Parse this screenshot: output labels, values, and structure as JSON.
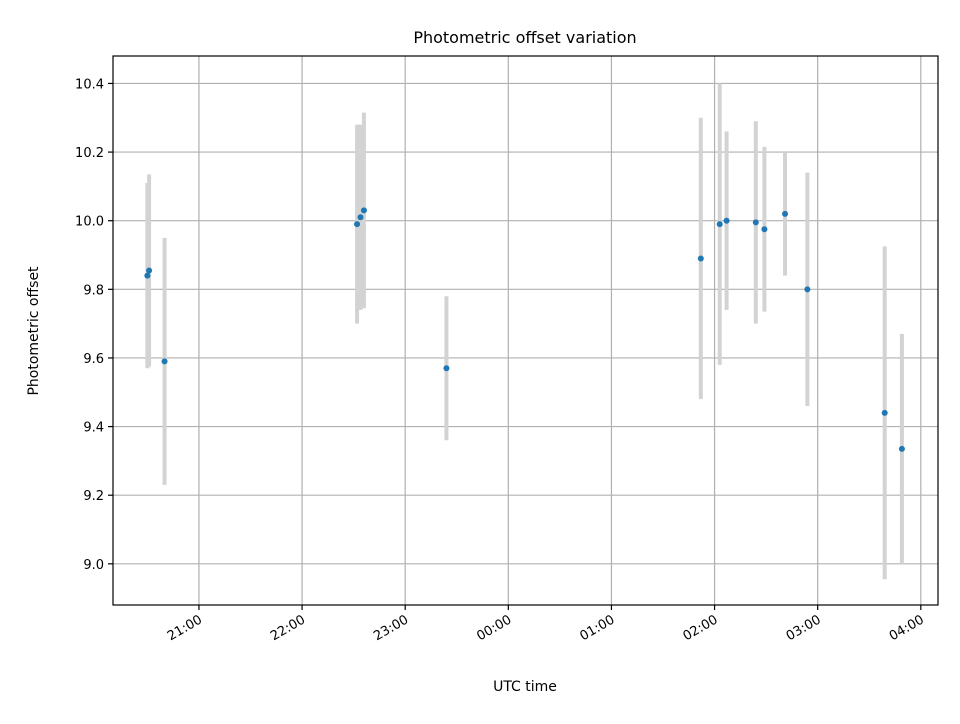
{
  "chart_data": {
    "type": "scatter",
    "title": "Photometric offset variation",
    "xlabel": "UTC time",
    "ylabel": "Photometric offset",
    "grid": true,
    "x_axis": {
      "kind": "time",
      "range": [
        "2000-01-01T20:10",
        "2000-01-02T04:10"
      ],
      "ticks": [
        {
          "value": "2000-01-01T21:00",
          "label": "21:00"
        },
        {
          "value": "2000-01-01T22:00",
          "label": "22:00"
        },
        {
          "value": "2000-01-01T23:00",
          "label": "23:00"
        },
        {
          "value": "2000-01-02T00:00",
          "label": "00:00"
        },
        {
          "value": "2000-01-02T01:00",
          "label": "01:00"
        },
        {
          "value": "2000-01-02T02:00",
          "label": "02:00"
        },
        {
          "value": "2000-01-02T03:00",
          "label": "03:00"
        },
        {
          "value": "2000-01-02T04:00",
          "label": "04:00"
        }
      ]
    },
    "y_axis": {
      "range": [
        8.88,
        10.48
      ],
      "ticks": [
        9.0,
        9.2,
        9.4,
        9.6,
        9.8,
        10.0,
        10.2,
        10.4
      ],
      "tick_labels": [
        "9.0",
        "9.2",
        "9.4",
        "9.6",
        "9.8",
        "10.0",
        "10.2",
        "10.4"
      ]
    },
    "colors": {
      "point": "#1f77b4",
      "errorbar": "#d3d3d3",
      "grid": "#b0b0b0"
    },
    "series": [
      {
        "points": [
          {
            "x": "2000-01-01T20:30",
            "y": 9.84,
            "yerr": 0.27
          },
          {
            "x": "2000-01-01T20:31",
            "y": 9.855,
            "yerr": 0.28
          },
          {
            "x": "2000-01-01T20:40",
            "y": 9.59,
            "yerr": 0.36
          },
          {
            "x": "2000-01-01T22:32",
            "y": 9.99,
            "yerr": 0.29
          },
          {
            "x": "2000-01-01T22:34",
            "y": 10.01,
            "yerr": 0.27
          },
          {
            "x": "2000-01-01T22:36",
            "y": 10.03,
            "yerr": 0.285
          },
          {
            "x": "2000-01-01T23:24",
            "y": 9.57,
            "yerr": 0.21
          },
          {
            "x": "2000-01-02T01:52",
            "y": 9.89,
            "yerr": 0.41
          },
          {
            "x": "2000-01-02T02:03",
            "y": 9.99,
            "yerr": 0.41
          },
          {
            "x": "2000-01-02T02:07",
            "y": 10.0,
            "yerr": 0.26
          },
          {
            "x": "2000-01-02T02:24",
            "y": 9.995,
            "yerr": 0.295
          },
          {
            "x": "2000-01-02T02:29",
            "y": 9.975,
            "yerr": 0.24
          },
          {
            "x": "2000-01-02T02:41",
            "y": 10.02,
            "yerr": 0.18
          },
          {
            "x": "2000-01-02T02:54",
            "y": 9.8,
            "yerr": 0.34
          },
          {
            "x": "2000-01-02T03:39",
            "y": 9.44,
            "yerr": 0.485
          },
          {
            "x": "2000-01-02T03:49",
            "y": 9.335,
            "yerr": 0.335
          }
        ]
      }
    ]
  }
}
